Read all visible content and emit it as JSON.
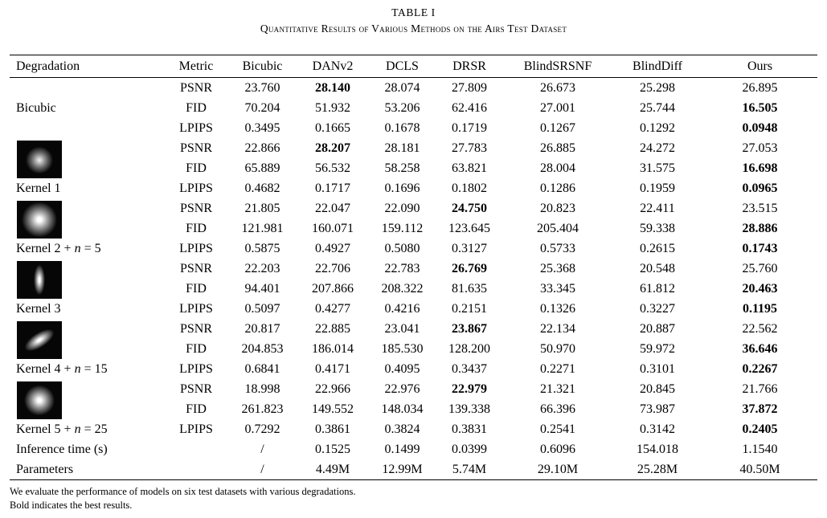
{
  "caption": {
    "title": "TABLE I",
    "subtitle": "Quantitative Results of Various Methods on the Airs Test Dataset"
  },
  "table": {
    "headers": [
      "Degradation",
      "Metric",
      "Bicubic",
      "DANv2",
      "DCLS",
      "DRSR",
      "BlindSRSNF",
      "BlindDiff",
      "Ours"
    ],
    "groups": [
      {
        "label_pre": "Bicubic",
        "label_var": "",
        "label_post": "",
        "kernel": null,
        "icon_name": null,
        "rows": [
          {
            "metric": "PSNR",
            "values": [
              "23.760",
              "28.140",
              "28.074",
              "27.809",
              "26.673",
              "25.298",
              "26.895"
            ],
            "bold": 1
          },
          {
            "metric": "FID",
            "values": [
              "70.204",
              "51.932",
              "53.206",
              "62.416",
              "27.001",
              "25.744",
              "16.505"
            ],
            "bold": 6
          },
          {
            "metric": "LPIPS",
            "values": [
              "0.3495",
              "0.1665",
              "0.1678",
              "0.1719",
              "0.1267",
              "0.1292",
              "0.0948"
            ],
            "bold": 6
          }
        ]
      },
      {
        "label_pre": "Kernel 1",
        "label_var": "",
        "label_post": "",
        "kernel": "blob-k1",
        "icon_name": "kernel-1-gaussian-blob-icon",
        "rows": [
          {
            "metric": "PSNR",
            "values": [
              "22.866",
              "28.207",
              "28.181",
              "27.783",
              "26.885",
              "24.272",
              "27.053"
            ],
            "bold": 1
          },
          {
            "metric": "FID",
            "values": [
              "65.889",
              "56.532",
              "58.258",
              "63.821",
              "28.004",
              "31.575",
              "16.698"
            ],
            "bold": 6
          },
          {
            "metric": "LPIPS",
            "values": [
              "0.4682",
              "0.1717",
              "0.1696",
              "0.1802",
              "0.1286",
              "0.1959",
              "0.0965"
            ],
            "bold": 6
          }
        ]
      },
      {
        "label_pre": "Kernel 2 + ",
        "label_var": "n",
        "label_post": " = 5",
        "kernel": "blob-k2",
        "icon_name": "kernel-2-gaussian-blob-icon",
        "rows": [
          {
            "metric": "PSNR",
            "values": [
              "21.805",
              "22.047",
              "22.090",
              "24.750",
              "20.823",
              "22.411",
              "23.515"
            ],
            "bold": 3
          },
          {
            "metric": "FID",
            "values": [
              "121.981",
              "160.071",
              "159.112",
              "123.645",
              "205.404",
              "59.338",
              "28.886"
            ],
            "bold": 6
          },
          {
            "metric": "LPIPS",
            "values": [
              "0.5875",
              "0.4927",
              "0.5080",
              "0.3127",
              "0.5733",
              "0.2615",
              "0.1743"
            ],
            "bold": 6
          }
        ]
      },
      {
        "label_pre": "Kernel 3",
        "label_var": "",
        "label_post": "",
        "kernel": "blob-k3",
        "icon_name": "kernel-3-vertical-blob-icon",
        "rows": [
          {
            "metric": "PSNR",
            "values": [
              "22.203",
              "22.706",
              "22.783",
              "26.769",
              "25.368",
              "20.548",
              "25.760"
            ],
            "bold": 3
          },
          {
            "metric": "FID",
            "values": [
              "94.401",
              "207.866",
              "208.322",
              "81.635",
              "33.345",
              "61.812",
              "20.463"
            ],
            "bold": 6
          },
          {
            "metric": "LPIPS",
            "values": [
              "0.5097",
              "0.4277",
              "0.4216",
              "0.2151",
              "0.1326",
              "0.3227",
              "0.1195"
            ],
            "bold": 6
          }
        ]
      },
      {
        "label_pre": "Kernel 4 + ",
        "label_var": "n",
        "label_post": " = 15",
        "kernel": "blob-k4",
        "icon_name": "kernel-4-diagonal-blob-icon",
        "rows": [
          {
            "metric": "PSNR",
            "values": [
              "20.817",
              "22.885",
              "23.041",
              "23.867",
              "22.134",
              "20.887",
              "22.562"
            ],
            "bold": 3
          },
          {
            "metric": "FID",
            "values": [
              "204.853",
              "186.014",
              "185.530",
              "128.200",
              "50.970",
              "59.972",
              "36.646"
            ],
            "bold": 6
          },
          {
            "metric": "LPIPS",
            "values": [
              "0.6841",
              "0.4171",
              "0.4095",
              "0.3437",
              "0.2271",
              "0.3101",
              "0.2267"
            ],
            "bold": 6
          }
        ]
      },
      {
        "label_pre": "Kernel 5 + ",
        "label_var": "n",
        "label_post": " = 25",
        "kernel": "blob-k5",
        "icon_name": "kernel-5-gaussian-blob-icon",
        "rows": [
          {
            "metric": "PSNR",
            "values": [
              "18.998",
              "22.966",
              "22.976",
              "22.979",
              "21.321",
              "20.845",
              "21.766"
            ],
            "bold": 3
          },
          {
            "metric": "FID",
            "values": [
              "261.823",
              "149.552",
              "148.034",
              "139.338",
              "66.396",
              "73.987",
              "37.872"
            ],
            "bold": 6
          },
          {
            "metric": "LPIPS",
            "values": [
              "0.7292",
              "0.3861",
              "0.3824",
              "0.3831",
              "0.2541",
              "0.3142",
              "0.2405"
            ],
            "bold": 6
          }
        ]
      }
    ],
    "extra_rows": [
      {
        "label": "Inference time (s)",
        "values": [
          "/",
          "0.1525",
          "0.1499",
          "0.0399",
          "0.6096",
          "154.018",
          "1.1540"
        ]
      },
      {
        "label": "Parameters",
        "values": [
          "/",
          "4.49M",
          "12.99M",
          "5.74M",
          "29.10M",
          "25.28M",
          "40.50M"
        ]
      }
    ]
  },
  "footnotes": [
    "We evaluate the performance of models on six test datasets with various degradations.",
    "Bold indicates the best results."
  ]
}
